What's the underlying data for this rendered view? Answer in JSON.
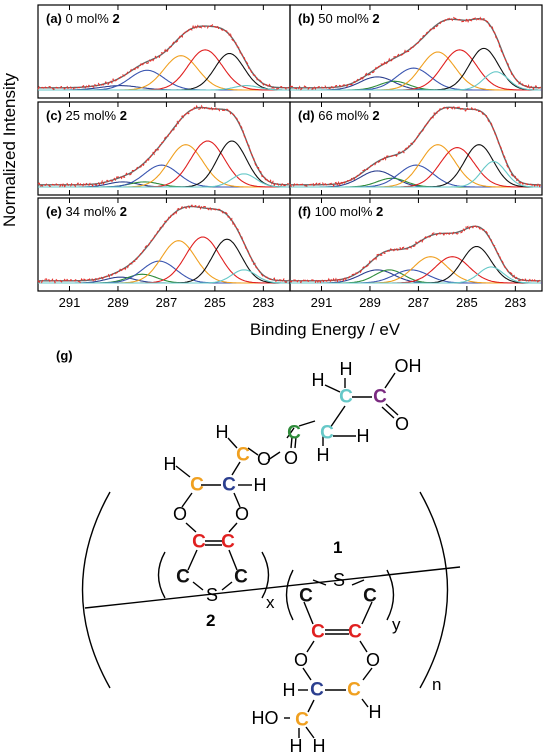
{
  "chart_data": {
    "type": "line",
    "x_axis": {
      "label": "Binding Energy / eV",
      "range": [
        292.3,
        281.9
      ],
      "ticks": [
        291,
        289,
        287,
        285,
        283
      ],
      "reversed": true
    },
    "y_axis": {
      "label": "Normalized Intensity"
    },
    "panels": [
      {
        "id": "a",
        "letter": "(a)",
        "text": " 0 mol% ",
        "bold": "2",
        "peaks": [
          {
            "color": "#2b3f8f",
            "center": 288.9,
            "amp": 0.06,
            "width": 0.8
          },
          {
            "color": "#3a55b0",
            "center": 287.8,
            "amp": 0.27,
            "width": 0.7
          },
          {
            "color": "#f0a020",
            "center": 286.4,
            "amp": 0.47,
            "width": 0.7
          },
          {
            "color": "#e02020",
            "center": 285.4,
            "amp": 0.55,
            "width": 0.7
          },
          {
            "color": "#111111",
            "center": 284.4,
            "amp": 0.5,
            "width": 0.6
          },
          {
            "color": "#66c8c8",
            "center": 283.7,
            "amp": 0.06,
            "width": 0.5
          }
        ]
      },
      {
        "id": "b",
        "letter": "(b)",
        "text": " 50 mol% ",
        "bold": "2",
        "peaks": [
          {
            "color": "#2b3f8f",
            "center": 288.7,
            "amp": 0.18,
            "width": 0.7
          },
          {
            "color": "#2e8b3a",
            "center": 288.0,
            "amp": 0.12,
            "width": 0.6
          },
          {
            "color": "#3a55b0",
            "center": 287.2,
            "amp": 0.3,
            "width": 0.7
          },
          {
            "color": "#f0a020",
            "center": 286.2,
            "amp": 0.52,
            "width": 0.7
          },
          {
            "color": "#e02020",
            "center": 285.3,
            "amp": 0.55,
            "width": 0.7
          },
          {
            "color": "#111111",
            "center": 284.3,
            "amp": 0.57,
            "width": 0.6
          },
          {
            "color": "#66c8c8",
            "center": 283.8,
            "amp": 0.25,
            "width": 0.5
          }
        ]
      },
      {
        "id": "c",
        "letter": "(c)",
        "text": " 25 mol% ",
        "bold": "2",
        "peaks": [
          {
            "color": "#2b3f8f",
            "center": 288.8,
            "amp": 0.07,
            "width": 0.6
          },
          {
            "color": "#2e8b3a",
            "center": 287.9,
            "amp": 0.07,
            "width": 0.6
          },
          {
            "color": "#3a55b0",
            "center": 287.2,
            "amp": 0.3,
            "width": 0.7
          },
          {
            "color": "#f0a020",
            "center": 286.2,
            "amp": 0.58,
            "width": 0.7
          },
          {
            "color": "#e02020",
            "center": 285.3,
            "amp": 0.63,
            "width": 0.7
          },
          {
            "color": "#111111",
            "center": 284.3,
            "amp": 0.63,
            "width": 0.6
          },
          {
            "color": "#66c8c8",
            "center": 283.8,
            "amp": 0.18,
            "width": 0.5
          }
        ]
      },
      {
        "id": "d",
        "letter": "(d)",
        "text": " 66 mol% ",
        "bold": "2",
        "peaks": [
          {
            "color": "#2b3f8f",
            "center": 288.7,
            "amp": 0.22,
            "width": 0.7
          },
          {
            "color": "#2e8b3a",
            "center": 288.1,
            "amp": 0.12,
            "width": 0.6
          },
          {
            "color": "#3a55b0",
            "center": 287.1,
            "amp": 0.3,
            "width": 0.7
          },
          {
            "color": "#f0a020",
            "center": 286.2,
            "amp": 0.58,
            "width": 0.7
          },
          {
            "color": "#e02020",
            "center": 285.4,
            "amp": 0.54,
            "width": 0.7
          },
          {
            "color": "#111111",
            "center": 284.5,
            "amp": 0.58,
            "width": 0.6
          },
          {
            "color": "#66c8c8",
            "center": 283.9,
            "amp": 0.35,
            "width": 0.5
          }
        ]
      },
      {
        "id": "e",
        "letter": "(e)",
        "text": " 34 mol% ",
        "bold": "2",
        "peaks": [
          {
            "color": "#2b3f8f",
            "center": 288.9,
            "amp": 0.08,
            "width": 0.6
          },
          {
            "color": "#2e8b3a",
            "center": 288.0,
            "amp": 0.12,
            "width": 0.6
          },
          {
            "color": "#3a55b0",
            "center": 287.3,
            "amp": 0.3,
            "width": 0.7
          },
          {
            "color": "#f0a020",
            "center": 286.5,
            "amp": 0.58,
            "width": 0.7
          },
          {
            "color": "#e02020",
            "center": 285.5,
            "amp": 0.63,
            "width": 0.7
          },
          {
            "color": "#111111",
            "center": 284.5,
            "amp": 0.6,
            "width": 0.6
          },
          {
            "color": "#66c8c8",
            "center": 283.8,
            "amp": 0.18,
            "width": 0.5
          }
        ]
      },
      {
        "id": "f",
        "letter": "(f)",
        "text": " 100 mol% ",
        "bold": "2",
        "peaks": [
          {
            "color": "#2b3f8f",
            "center": 288.7,
            "amp": 0.18,
            "width": 0.7
          },
          {
            "color": "#2e8b3a",
            "center": 288.2,
            "amp": 0.18,
            "width": 0.6
          },
          {
            "color": "#3a55b0",
            "center": 287.3,
            "amp": 0.18,
            "width": 0.7
          },
          {
            "color": "#f0a020",
            "center": 286.5,
            "amp": 0.36,
            "width": 0.7
          },
          {
            "color": "#e02020",
            "center": 285.6,
            "amp": 0.36,
            "width": 0.7
          },
          {
            "color": "#111111",
            "center": 284.6,
            "amp": 0.5,
            "width": 0.6
          },
          {
            "color": "#66c8c8",
            "center": 284.0,
            "amp": 0.22,
            "width": 0.5
          }
        ]
      }
    ]
  },
  "structure": {
    "panel_label": "(g)",
    "atoms": {
      "C": "C",
      "O": "O",
      "S": "S",
      "H": "H",
      "OH": "OH",
      "HO": "HO"
    },
    "labels": {
      "unit1": "1",
      "unit2": "2",
      "x": "x",
      "y": "y",
      "n": "n"
    },
    "colors": {
      "orange": "#f0a020",
      "navy": "#2b3f8f",
      "red": "#e02020",
      "black": "#111111",
      "green": "#2e8b3a",
      "cyan": "#66c8c8",
      "purple": "#7a2a80"
    }
  }
}
